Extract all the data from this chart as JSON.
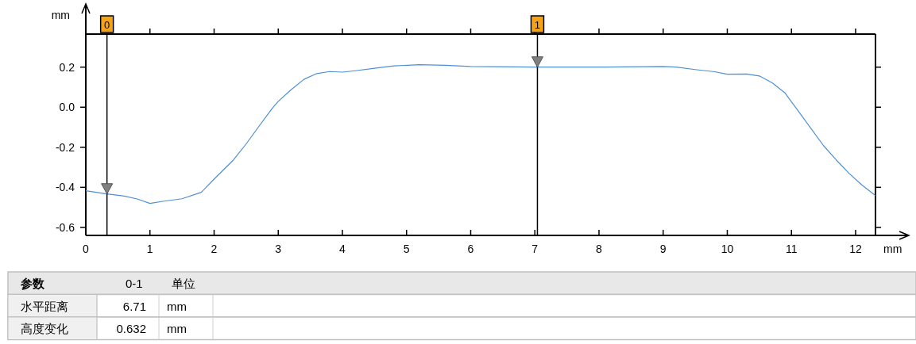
{
  "chart_data": {
    "type": "line",
    "xlabel": "mm",
    "ylabel": "mm",
    "xlim": [
      0,
      12.31
    ],
    "ylim": [
      -0.64,
      0.365
    ],
    "xticks": [
      0,
      1,
      2,
      3,
      4,
      5,
      6,
      7,
      8,
      9,
      10,
      11,
      12
    ],
    "yticks": [
      {
        "value": -0.6,
        "label": "-0.6"
      },
      {
        "value": -0.4,
        "label": "-0.4"
      },
      {
        "value": -0.2,
        "label": "-0.2"
      },
      {
        "value": 0,
        "label": "0.0"
      },
      {
        "value": 0.2,
        "label": "0.2"
      }
    ],
    "grid": false,
    "series": [
      {
        "color": "#4d8fd6",
        "x": [
          0,
          0.3,
          0.6,
          0.8,
          1.0,
          1.2,
          1.5,
          1.8,
          2.0,
          2.3,
          2.5,
          2.7,
          2.9,
          3.0,
          3.2,
          3.4,
          3.6,
          3.8,
          4.0,
          4.2,
          4.5,
          4.8,
          5.2,
          5.6,
          6.0,
          7.0,
          8.0,
          9.0,
          9.2,
          9.5,
          9.8,
          10.0,
          10.3,
          10.5,
          10.7,
          10.9,
          11.1,
          11.3,
          11.5,
          11.7,
          11.9,
          12.1,
          12.31
        ],
        "values": [
          -0.417,
          -0.432,
          -0.444,
          -0.458,
          -0.48,
          -0.47,
          -0.457,
          -0.425,
          -0.359,
          -0.264,
          -0.183,
          -0.095,
          -0.008,
          0.029,
          0.087,
          0.139,
          0.168,
          0.178,
          0.175,
          0.182,
          0.194,
          0.206,
          0.212,
          0.209,
          0.203,
          0.2,
          0.2,
          0.203,
          0.2,
          0.188,
          0.177,
          0.165,
          0.166,
          0.156,
          0.122,
          0.071,
          -0.016,
          -0.104,
          -0.192,
          -0.264,
          -0.331,
          -0.389,
          -0.441
        ]
      }
    ],
    "ref_lines": [
      {
        "axis": "x",
        "value": 0.33
      },
      {
        "axis": "x",
        "value": 7.04
      }
    ],
    "annotations": [
      "参数",
      "0-1",
      "单位",
      "水平距离",
      "6.71",
      "mm",
      "高度变化",
      "0.632",
      "mm",
      {
        "text": "0",
        "x": 0.33
      },
      {
        "text": "1",
        "x": 7.04
      }
    ]
  }
}
